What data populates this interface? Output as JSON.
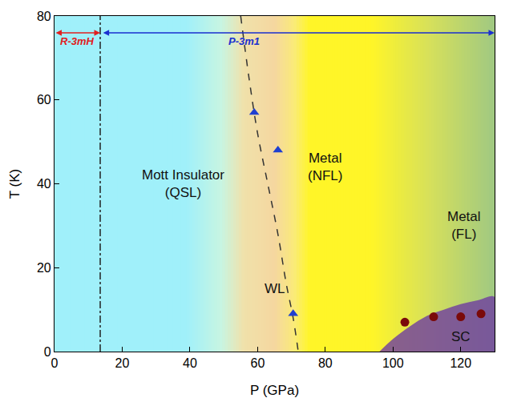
{
  "chart_data": {
    "type": "scatter",
    "xlabel": "P (GPa)",
    "ylabel": "T (K)",
    "xlim": [
      0,
      130
    ],
    "ylim": [
      0,
      80
    ],
    "xticks": [
      0,
      20,
      40,
      60,
      80,
      100,
      120
    ],
    "yticks": [
      0,
      20,
      40,
      60,
      80
    ],
    "grid": false,
    "series": [
      {
        "type": "area",
        "color": "#6e3ca0",
        "x": [
          96,
          100,
          105,
          110,
          115,
          120,
          125,
          130
        ],
        "values": [
          0,
          3,
          6,
          8.5,
          10,
          11.3,
          12.2,
          13
        ]
      },
      {
        "type": "line",
        "color": "#333333",
        "line_style": "dashed",
        "x": [
          55,
          57.5,
          60,
          63,
          66,
          68.5,
          70.5,
          72
        ],
        "values": [
          80,
          65,
          52,
          40,
          28,
          16,
          8,
          0
        ]
      },
      {
        "type": "line",
        "color": "#222222",
        "line_style": "dashdot",
        "x": [
          13.5,
          13.5
        ],
        "values": [
          0,
          80
        ]
      },
      {
        "type": "scatter",
        "color": "#1f3fd0",
        "marker": "triangle-up",
        "x": [
          59,
          66,
          70.5
        ],
        "values": [
          57,
          48,
          9
        ]
      },
      {
        "type": "scatter",
        "color": "#7a0a0a",
        "marker": "circle",
        "x": [
          103.5,
          112,
          120,
          126
        ],
        "values": [
          7,
          8.3,
          8.3,
          9
        ]
      }
    ],
    "phases": [
      {
        "label": "R-3mH",
        "color": "#e02020",
        "x": [
          0,
          13.5
        ],
        "y": 76,
        "label_x": 6.75
      },
      {
        "label": "P-3m1",
        "color": "#1a2fd0",
        "x": [
          14,
          130
        ],
        "y": 76,
        "label_x": 56
      }
    ],
    "annotations": [
      {
        "text": [
          "Mott Insulator",
          "(QSL)"
        ],
        "x": 38,
        "y": 40
      },
      {
        "text": [
          "Metal",
          "(NFL)"
        ],
        "x": 80,
        "y": 44
      },
      {
        "text": [
          "WL"
        ],
        "x": 65,
        "y": 15
      },
      {
        "text": [
          "Metal",
          "(FL)"
        ],
        "x": 121,
        "y": 30
      },
      {
        "text": [
          "SC"
        ],
        "x": 120,
        "y": 3.5
      }
    ]
  }
}
